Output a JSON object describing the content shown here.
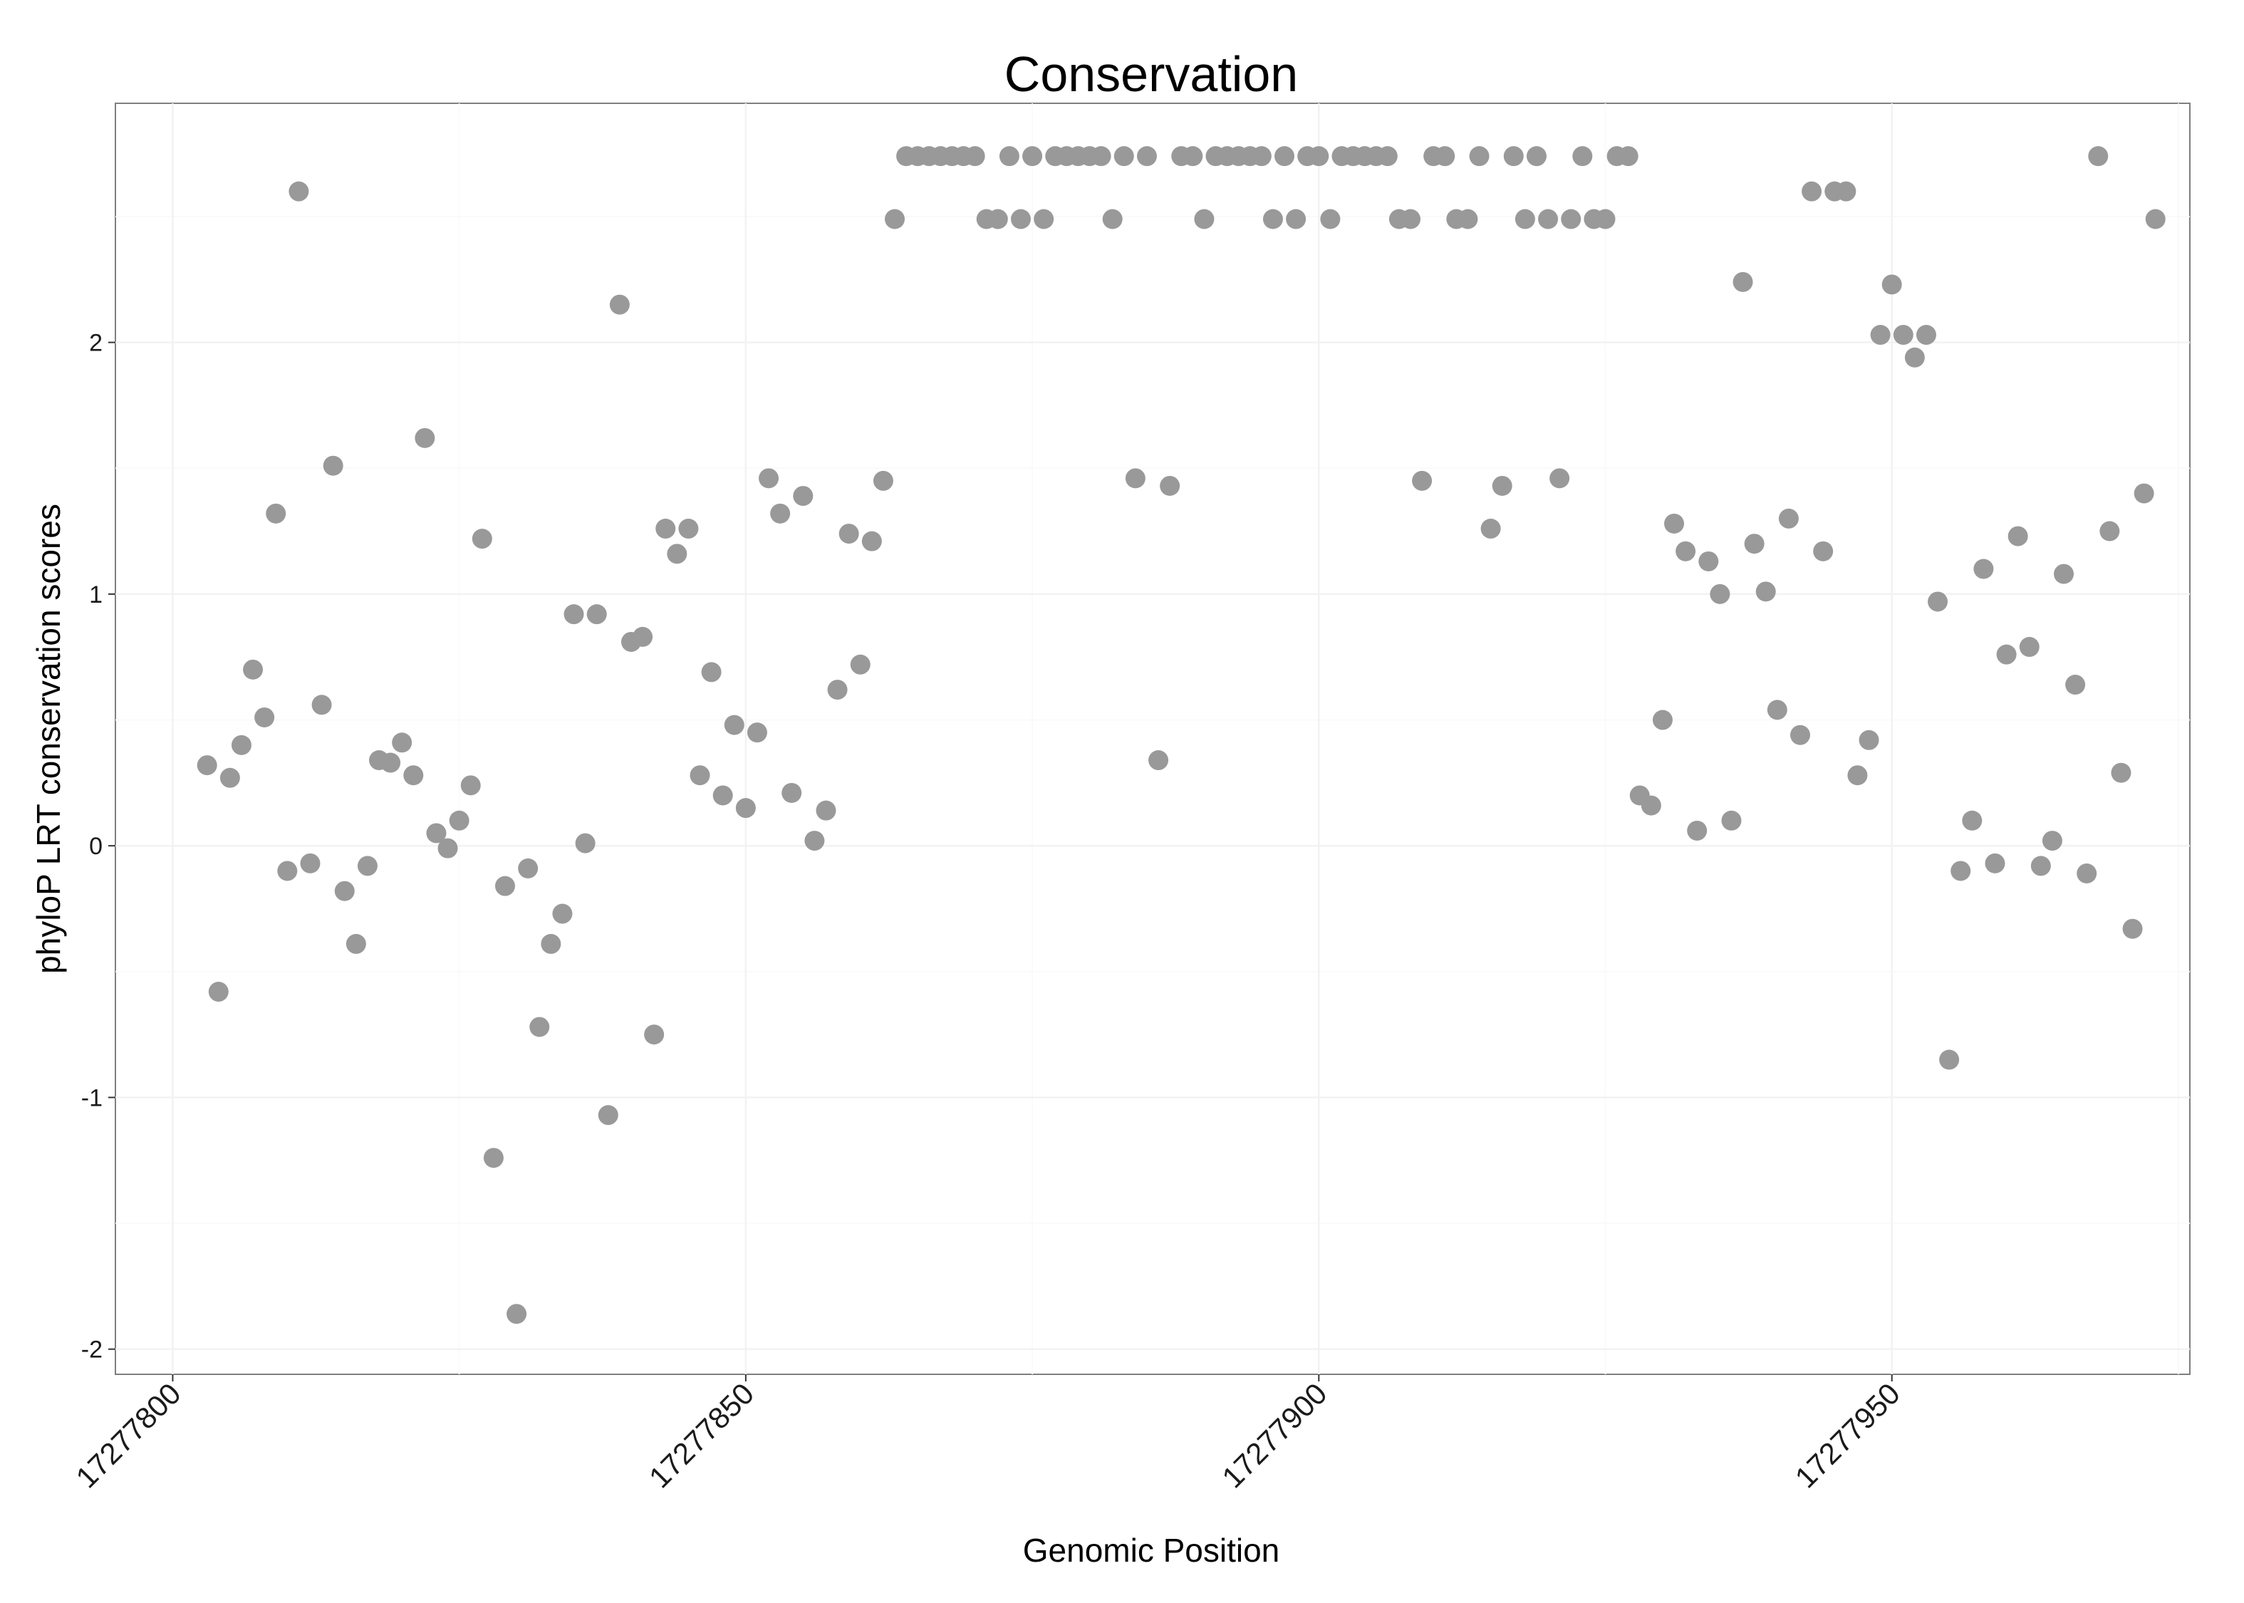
{
  "chart_data": {
    "type": "scatter",
    "title": "Conservation",
    "xlabel": "Genomic Position",
    "ylabel": "phyloP LRT conservation scores",
    "xlim": [
      17277795,
      17277976
    ],
    "ylim": [
      -2.1,
      2.95
    ],
    "xticks": [
      17277800,
      17277850,
      17277900,
      17277950
    ],
    "xtick_labels": [
      "17277800",
      "17277850",
      "17277900",
      "17277950"
    ],
    "yticks": [
      -2,
      -1,
      0,
      1,
      2
    ],
    "ytick_labels": [
      "-2",
      "-1",
      "0",
      "1",
      "2"
    ],
    "grid": true,
    "point_color": "#999999",
    "series": [
      {
        "name": "phyloP LRT",
        "points": [
          [
            17277803,
            0.32
          ],
          [
            17277804,
            -0.58
          ],
          [
            17277805,
            0.27
          ],
          [
            17277806,
            0.4
          ],
          [
            17277807,
            0.7
          ],
          [
            17277808,
            0.51
          ],
          [
            17277809,
            1.32
          ],
          [
            17277810,
            -0.1
          ],
          [
            17277811,
            2.6
          ],
          [
            17277812,
            -0.07
          ],
          [
            17277813,
            0.56
          ],
          [
            17277814,
            1.51
          ],
          [
            17277815,
            -0.18
          ],
          [
            17277816,
            -0.39
          ],
          [
            17277817,
            -0.08
          ],
          [
            17277818,
            0.34
          ],
          [
            17277819,
            0.33
          ],
          [
            17277820,
            0.41
          ],
          [
            17277821,
            0.28
          ],
          [
            17277822,
            1.62
          ],
          [
            17277823,
            0.05
          ],
          [
            17277824,
            -0.01
          ],
          [
            17277825,
            0.1
          ],
          [
            17277826,
            0.24
          ],
          [
            17277827,
            1.22
          ],
          [
            17277828,
            -1.24
          ],
          [
            17277829,
            -0.16
          ],
          [
            17277830,
            -1.86
          ],
          [
            17277831,
            -0.09
          ],
          [
            17277832,
            -0.72
          ],
          [
            17277833,
            -0.39
          ],
          [
            17277834,
            -0.27
          ],
          [
            17277835,
            0.92
          ],
          [
            17277836,
            0.01
          ],
          [
            17277837,
            0.92
          ],
          [
            17277838,
            -1.07
          ],
          [
            17277839,
            2.15
          ],
          [
            17277840,
            0.81
          ],
          [
            17277841,
            0.83
          ],
          [
            17277842,
            -0.75
          ],
          [
            17277843,
            1.26
          ],
          [
            17277844,
            1.16
          ],
          [
            17277845,
            1.26
          ],
          [
            17277846,
            0.28
          ],
          [
            17277847,
            0.69
          ],
          [
            17277848,
            0.2
          ],
          [
            17277849,
            0.48
          ],
          [
            17277850,
            0.15
          ],
          [
            17277851,
            0.45
          ],
          [
            17277852,
            1.46
          ],
          [
            17277853,
            1.32
          ],
          [
            17277854,
            0.21
          ],
          [
            17277855,
            1.39
          ],
          [
            17277856,
            0.02
          ],
          [
            17277857,
            0.14
          ],
          [
            17277858,
            0.62
          ],
          [
            17277859,
            1.24
          ],
          [
            17277860,
            0.72
          ],
          [
            17277861,
            1.21
          ],
          [
            17277862,
            1.45
          ],
          [
            17277863,
            2.49
          ],
          [
            17277864,
            2.74
          ],
          [
            17277865,
            2.74
          ],
          [
            17277866,
            2.74
          ],
          [
            17277867,
            2.74
          ],
          [
            17277868,
            2.74
          ],
          [
            17277869,
            2.74
          ],
          [
            17277870,
            2.74
          ],
          [
            17277871,
            2.49
          ],
          [
            17277872,
            2.49
          ],
          [
            17277873,
            2.74
          ],
          [
            17277874,
            2.49
          ],
          [
            17277875,
            2.74
          ],
          [
            17277876,
            2.49
          ],
          [
            17277877,
            2.74
          ],
          [
            17277878,
            2.74
          ],
          [
            17277879,
            2.74
          ],
          [
            17277880,
            2.74
          ],
          [
            17277881,
            2.74
          ],
          [
            17277882,
            2.49
          ],
          [
            17277883,
            2.74
          ],
          [
            17277884,
            1.46
          ],
          [
            17277885,
            2.74
          ],
          [
            17277886,
            0.34
          ],
          [
            17277887,
            1.43
          ],
          [
            17277888,
            2.74
          ],
          [
            17277889,
            2.74
          ],
          [
            17277890,
            2.49
          ],
          [
            17277891,
            2.74
          ],
          [
            17277892,
            2.74
          ],
          [
            17277893,
            2.74
          ],
          [
            17277894,
            2.74
          ],
          [
            17277895,
            2.74
          ],
          [
            17277896,
            2.49
          ],
          [
            17277897,
            2.74
          ],
          [
            17277898,
            2.49
          ],
          [
            17277899,
            2.74
          ],
          [
            17277900,
            2.74
          ],
          [
            17277901,
            2.49
          ],
          [
            17277902,
            2.74
          ],
          [
            17277903,
            2.74
          ],
          [
            17277904,
            2.74
          ],
          [
            17277905,
            2.74
          ],
          [
            17277906,
            2.74
          ],
          [
            17277907,
            2.49
          ],
          [
            17277908,
            2.49
          ],
          [
            17277909,
            1.45
          ],
          [
            17277910,
            2.74
          ],
          [
            17277911,
            2.74
          ],
          [
            17277912,
            2.49
          ],
          [
            17277913,
            2.49
          ],
          [
            17277914,
            2.74
          ],
          [
            17277915,
            1.26
          ],
          [
            17277916,
            1.43
          ],
          [
            17277917,
            2.74
          ],
          [
            17277918,
            2.49
          ],
          [
            17277919,
            2.74
          ],
          [
            17277920,
            2.49
          ],
          [
            17277921,
            1.46
          ],
          [
            17277922,
            2.49
          ],
          [
            17277923,
            2.74
          ],
          [
            17277924,
            2.49
          ],
          [
            17277925,
            2.49
          ],
          [
            17277926,
            2.74
          ],
          [
            17277927,
            2.74
          ],
          [
            17277928,
            0.2
          ],
          [
            17277929,
            0.16
          ],
          [
            17277930,
            0.5
          ],
          [
            17277931,
            1.28
          ],
          [
            17277932,
            1.17
          ],
          [
            17277933,
            0.06
          ],
          [
            17277934,
            1.13
          ],
          [
            17277935,
            1.0
          ],
          [
            17277936,
            0.1
          ],
          [
            17277937,
            2.24
          ],
          [
            17277938,
            1.2
          ],
          [
            17277939,
            1.01
          ],
          [
            17277940,
            0.54
          ],
          [
            17277941,
            1.3
          ],
          [
            17277942,
            0.44
          ],
          [
            17277943,
            2.6
          ],
          [
            17277944,
            1.17
          ],
          [
            17277945,
            2.6
          ],
          [
            17277946,
            2.6
          ],
          [
            17277947,
            0.28
          ],
          [
            17277948,
            0.42
          ],
          [
            17277949,
            2.03
          ],
          [
            17277950,
            2.23
          ],
          [
            17277951,
            2.03
          ],
          [
            17277952,
            1.94
          ],
          [
            17277953,
            2.03
          ],
          [
            17277954,
            0.97
          ],
          [
            17277955,
            -0.85
          ],
          [
            17277956,
            -0.1
          ],
          [
            17277957,
            0.1
          ],
          [
            17277958,
            1.1
          ],
          [
            17277959,
            -0.07
          ],
          [
            17277960,
            0.76
          ],
          [
            17277961,
            1.23
          ],
          [
            17277962,
            0.79
          ],
          [
            17277963,
            -0.08
          ],
          [
            17277964,
            0.02
          ],
          [
            17277965,
            1.08
          ],
          [
            17277966,
            0.64
          ],
          [
            17277967,
            -0.11
          ],
          [
            17277968,
            2.74
          ],
          [
            17277969,
            1.25
          ],
          [
            17277970,
            0.29
          ],
          [
            17277971,
            -0.33
          ],
          [
            17277972,
            1.4
          ],
          [
            17277973,
            2.49
          ]
        ]
      }
    ]
  }
}
